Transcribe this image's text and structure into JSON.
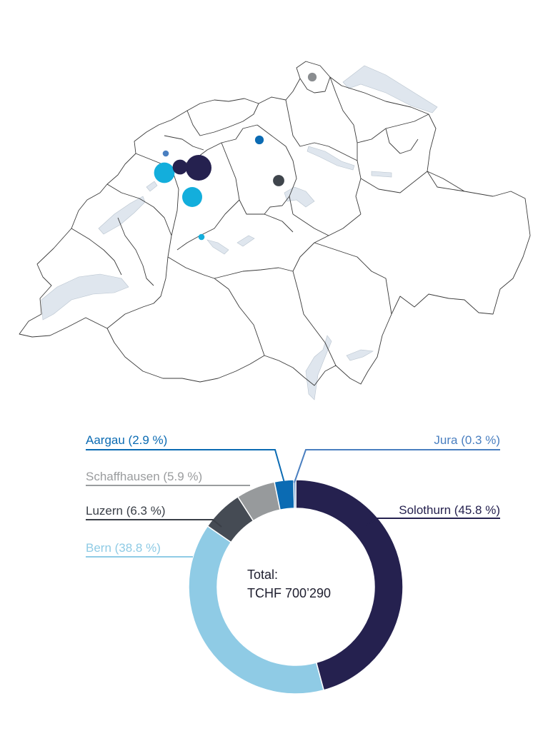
{
  "total": {
    "label": "Total:",
    "value": "TCHF 700’290"
  },
  "chart_data": {
    "type": "pie",
    "donut": true,
    "categories": [
      "Solothurn",
      "Bern",
      "Luzern",
      "Schaffhausen",
      "Aargau",
      "Jura"
    ],
    "values": [
      45.8,
      38.8,
      6.3,
      5.9,
      2.9,
      0.3
    ],
    "unit": "%",
    "labels": [
      "Solothurn (45.8 %)",
      "Bern (38.8 %)",
      "Luzern (6.3 %)",
      "Schaffhausen (5.9 %)",
      "Aargau (2.9 %)",
      "Jura (0.3 %)"
    ],
    "colors": [
      "#25214f",
      "#8fcbe5",
      "#454b54",
      "#979a9c",
      "#0b6bb3",
      "#4a7fc0"
    ],
    "legend": "callout labels with leader lines"
  },
  "map": {
    "region": "Switzerland",
    "colors": {
      "border": "#3a3a3a",
      "lake": "#dfe6ee"
    },
    "markers": [
      {
        "canton": "Schaffhausen",
        "color": "#8a8d90",
        "size": 0.17
      },
      {
        "canton": "Aargau",
        "color": "#0b6bb3",
        "size": 0.17
      },
      {
        "canton": "Jura",
        "color": "#4a7fc0",
        "size": 0.12
      },
      {
        "canton": "Bern",
        "color": "#13aedc",
        "size": 0.4
      },
      {
        "canton": "Solothurn",
        "color": "#25214f",
        "size": 0.5
      },
      {
        "canton": "Solothurn",
        "color": "#25214f",
        "size": 0.29
      },
      {
        "canton": "Bern",
        "color": "#13aedc",
        "size": 0.39
      },
      {
        "canton": "Luzern",
        "color": "#3f454c",
        "size": 0.22
      },
      {
        "canton": "Bern",
        "color": "#13aedc",
        "size": 0.12
      }
    ]
  }
}
